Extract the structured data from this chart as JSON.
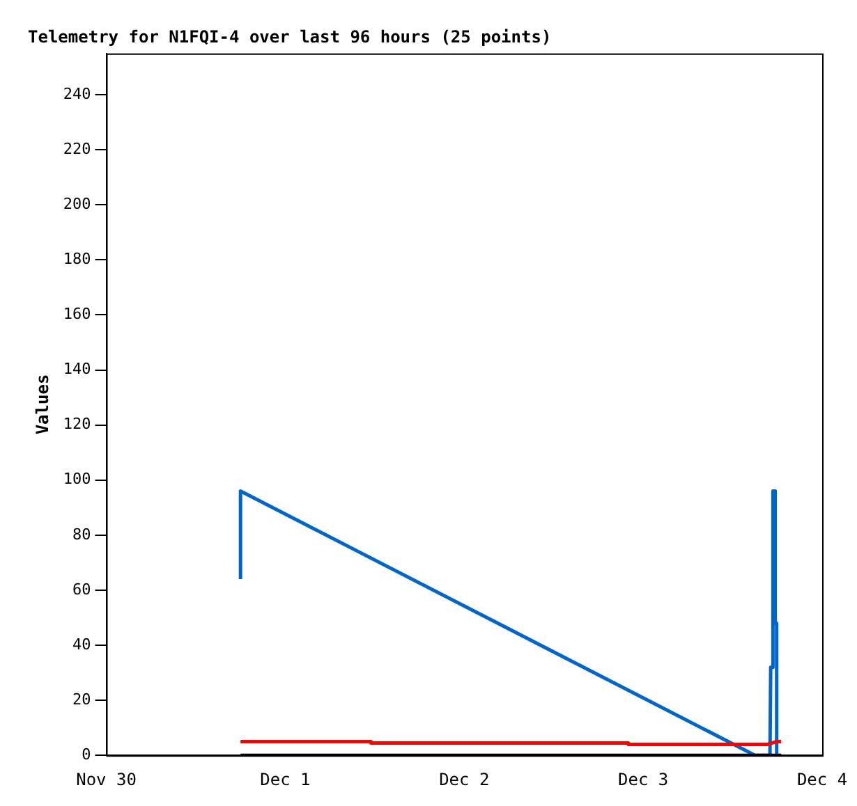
{
  "chart_data": {
    "type": "line",
    "title": "Telemetry for N1FQI-4 over last 96 hours (25 points)",
    "ylabel": "Values",
    "xlim": [
      "--11-30",
      "--12-04"
    ],
    "xticks": [
      {
        "value": "--11-30",
        "label": "Nov 30"
      },
      {
        "value": "--12-01",
        "label": "Dec 1"
      },
      {
        "value": "--12-02",
        "label": "Dec 2"
      },
      {
        "value": "--12-03",
        "label": "Dec 3"
      },
      {
        "value": "--12-04",
        "label": "Dec 4"
      }
    ],
    "ylim": [
      0,
      255
    ],
    "yticks": [
      0,
      20,
      40,
      60,
      80,
      100,
      120,
      140,
      160,
      180,
      200,
      220,
      240
    ],
    "grid": false,
    "legend": false,
    "marker": "none",
    "line_style": "solid",
    "series": [
      {
        "color": "#000000",
        "x": [
          "--11-30T18:00",
          "--12-03T18:30"
        ],
        "values": [
          0,
          0
        ]
      },
      {
        "color": "#ff0000",
        "x": [
          "--11-30T18:00",
          "--12-01T11:30",
          "--12-01T11:30",
          "--12-02T22:00",
          "--12-02T22:00",
          "--12-03T16:42",
          "--12-03T17:54",
          "--12-03T18:30"
        ],
        "values": [
          5,
          5,
          4.5,
          4.5,
          4,
          4,
          5,
          5
        ]
      },
      {
        "color": "#0066cc",
        "x": [
          "--11-30T18:00",
          "--11-30T18:00",
          "--12-03T15:00",
          "--12-03T17:00",
          "--12-03T17:06",
          "--12-03T17:24",
          "--12-03T17:24",
          "--12-03T17:42",
          "--12-03T17:42",
          "--12-03T17:54",
          "--12-03T17:54"
        ],
        "values": [
          64,
          96,
          0,
          0,
          32,
          32,
          96,
          96,
          48,
          48,
          0
        ]
      }
    ]
  }
}
